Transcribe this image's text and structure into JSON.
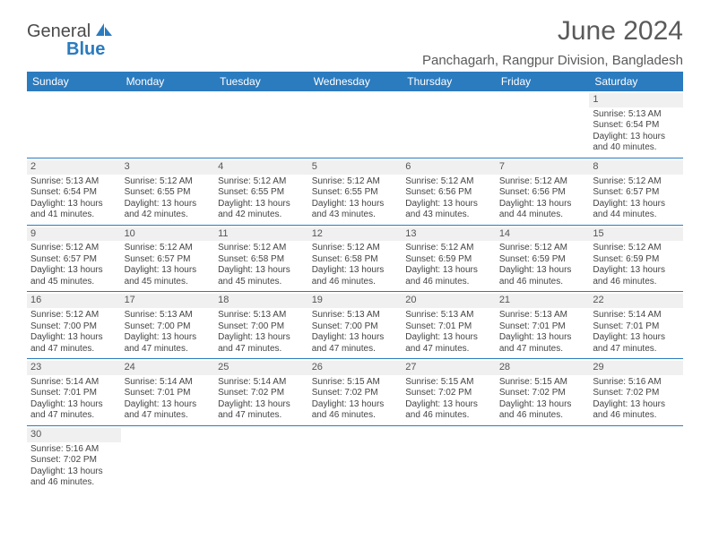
{
  "logo": {
    "part1": "General",
    "part2": "Blue"
  },
  "title": "June 2024",
  "location": "Panchagarh, Rangpur Division, Bangladesh",
  "colors": {
    "header_bg": "#2b7bbf",
    "header_fg": "#ffffff",
    "daynum_bg": "#f0f0f0",
    "border": "#2b7bbf",
    "text": "#444444"
  },
  "weekdays": [
    "Sunday",
    "Monday",
    "Tuesday",
    "Wednesday",
    "Thursday",
    "Friday",
    "Saturday"
  ],
  "days": {
    "1": {
      "sunrise": "5:13 AM",
      "sunset": "6:54 PM",
      "daylight": "13 hours and 40 minutes."
    },
    "2": {
      "sunrise": "5:13 AM",
      "sunset": "6:54 PM",
      "daylight": "13 hours and 41 minutes."
    },
    "3": {
      "sunrise": "5:12 AM",
      "sunset": "6:55 PM",
      "daylight": "13 hours and 42 minutes."
    },
    "4": {
      "sunrise": "5:12 AM",
      "sunset": "6:55 PM",
      "daylight": "13 hours and 42 minutes."
    },
    "5": {
      "sunrise": "5:12 AM",
      "sunset": "6:55 PM",
      "daylight": "13 hours and 43 minutes."
    },
    "6": {
      "sunrise": "5:12 AM",
      "sunset": "6:56 PM",
      "daylight": "13 hours and 43 minutes."
    },
    "7": {
      "sunrise": "5:12 AM",
      "sunset": "6:56 PM",
      "daylight": "13 hours and 44 minutes."
    },
    "8": {
      "sunrise": "5:12 AM",
      "sunset": "6:57 PM",
      "daylight": "13 hours and 44 minutes."
    },
    "9": {
      "sunrise": "5:12 AM",
      "sunset": "6:57 PM",
      "daylight": "13 hours and 45 minutes."
    },
    "10": {
      "sunrise": "5:12 AM",
      "sunset": "6:57 PM",
      "daylight": "13 hours and 45 minutes."
    },
    "11": {
      "sunrise": "5:12 AM",
      "sunset": "6:58 PM",
      "daylight": "13 hours and 45 minutes."
    },
    "12": {
      "sunrise": "5:12 AM",
      "sunset": "6:58 PM",
      "daylight": "13 hours and 46 minutes."
    },
    "13": {
      "sunrise": "5:12 AM",
      "sunset": "6:59 PM",
      "daylight": "13 hours and 46 minutes."
    },
    "14": {
      "sunrise": "5:12 AM",
      "sunset": "6:59 PM",
      "daylight": "13 hours and 46 minutes."
    },
    "15": {
      "sunrise": "5:12 AM",
      "sunset": "6:59 PM",
      "daylight": "13 hours and 46 minutes."
    },
    "16": {
      "sunrise": "5:12 AM",
      "sunset": "7:00 PM",
      "daylight": "13 hours and 47 minutes."
    },
    "17": {
      "sunrise": "5:13 AM",
      "sunset": "7:00 PM",
      "daylight": "13 hours and 47 minutes."
    },
    "18": {
      "sunrise": "5:13 AM",
      "sunset": "7:00 PM",
      "daylight": "13 hours and 47 minutes."
    },
    "19": {
      "sunrise": "5:13 AM",
      "sunset": "7:00 PM",
      "daylight": "13 hours and 47 minutes."
    },
    "20": {
      "sunrise": "5:13 AM",
      "sunset": "7:01 PM",
      "daylight": "13 hours and 47 minutes."
    },
    "21": {
      "sunrise": "5:13 AM",
      "sunset": "7:01 PM",
      "daylight": "13 hours and 47 minutes."
    },
    "22": {
      "sunrise": "5:14 AM",
      "sunset": "7:01 PM",
      "daylight": "13 hours and 47 minutes."
    },
    "23": {
      "sunrise": "5:14 AM",
      "sunset": "7:01 PM",
      "daylight": "13 hours and 47 minutes."
    },
    "24": {
      "sunrise": "5:14 AM",
      "sunset": "7:01 PM",
      "daylight": "13 hours and 47 minutes."
    },
    "25": {
      "sunrise": "5:14 AM",
      "sunset": "7:02 PM",
      "daylight": "13 hours and 47 minutes."
    },
    "26": {
      "sunrise": "5:15 AM",
      "sunset": "7:02 PM",
      "daylight": "13 hours and 46 minutes."
    },
    "27": {
      "sunrise": "5:15 AM",
      "sunset": "7:02 PM",
      "daylight": "13 hours and 46 minutes."
    },
    "28": {
      "sunrise": "5:15 AM",
      "sunset": "7:02 PM",
      "daylight": "13 hours and 46 minutes."
    },
    "29": {
      "sunrise": "5:16 AM",
      "sunset": "7:02 PM",
      "daylight": "13 hours and 46 minutes."
    },
    "30": {
      "sunrise": "5:16 AM",
      "sunset": "7:02 PM",
      "daylight": "13 hours and 46 minutes."
    }
  },
  "labels": {
    "sunrise": "Sunrise: ",
    "sunset": "Sunset: ",
    "daylight": "Daylight: "
  },
  "layout": {
    "first_weekday_index": 6,
    "num_days": 30
  }
}
